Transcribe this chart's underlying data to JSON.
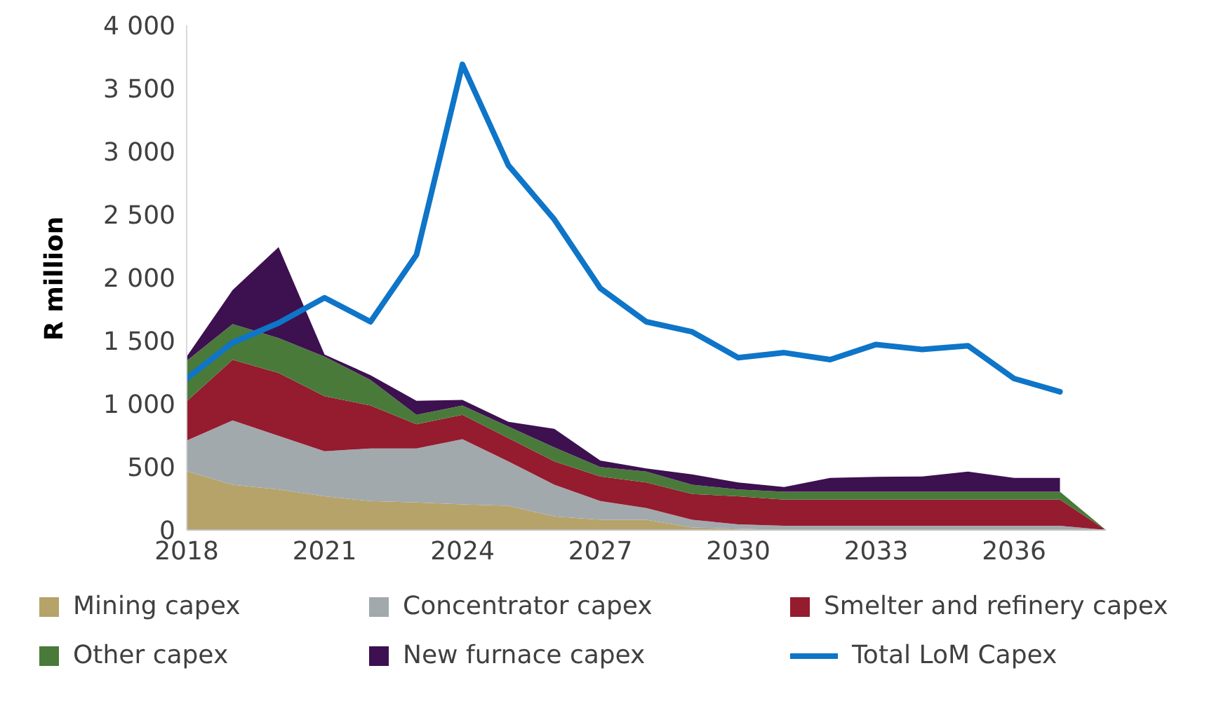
{
  "chart_data": {
    "type": "area",
    "stacked": true,
    "ylabel": "R million",
    "x": [
      2018,
      2019,
      2020,
      2021,
      2022,
      2023,
      2024,
      2025,
      2026,
      2027,
      2028,
      2029,
      2030,
      2031,
      2032,
      2033,
      2034,
      2035,
      2036,
      2037,
      2038
    ],
    "xlim": [
      2018,
      2038
    ],
    "xticks": [
      2018,
      2021,
      2024,
      2027,
      2030,
      2033,
      2036
    ],
    "ylim": [
      0,
      4000
    ],
    "yticks": [
      0,
      500,
      {
        "value": 1000,
        "label": "1 000"
      },
      {
        "value": 1500,
        "label": "1 500"
      },
      {
        "value": 2000,
        "label": "2 000"
      },
      {
        "value": 2500,
        "label": "2 500"
      },
      {
        "value": 3000,
        "label": "3 000"
      },
      {
        "value": 3500,
        "label": "3 500"
      },
      {
        "value": 4000,
        "label": "4 000"
      }
    ],
    "grid": false,
    "legend": "bottom",
    "marker": "none",
    "line_style": "solid",
    "series": [
      {
        "name": "Mining capex",
        "color": "#b5a36a",
        "values": [
          465,
          358,
          321,
          266,
          229,
          218,
          203,
          192,
          107,
          81,
          81,
          19,
          10,
          0,
          0,
          0,
          0,
          0,
          0,
          0,
          0
        ]
      },
      {
        "name": "Concentrator capex",
        "color": "#a2a9ad",
        "values": [
          244,
          510,
          425,
          358,
          417,
          428,
          517,
          351,
          251,
          148,
          92,
          62,
          34,
          33,
          33,
          33,
          33,
          33,
          33,
          33,
          0
        ]
      },
      {
        "name": "Smelter and refinery capex",
        "color": "#951b2f",
        "values": [
          310,
          480,
          498,
          436,
          340,
          192,
          192,
          185,
          185,
          195,
          204,
          204,
          222,
          207,
          207,
          207,
          207,
          207,
          207,
          207,
          0
        ]
      },
      {
        "name": "Other capex",
        "color": "#4a7a3a",
        "values": [
          321,
          284,
          277,
          314,
          203,
          74,
          74,
          92,
          111,
          75,
          85,
          73,
          55,
          63,
          63,
          63,
          63,
          63,
          63,
          63,
          0
        ]
      },
      {
        "name": "New furnace capex",
        "color": "#3d1050",
        "values": [
          34,
          270,
          721,
          16,
          38,
          111,
          44,
          37,
          147,
          51,
          26,
          82,
          56,
          37,
          110,
          118,
          121,
          159,
          110,
          110,
          null
        ]
      },
      {
        "name": "Total LoM Capex",
        "type": "line",
        "color": "#0e75c8",
        "values": [
          1200,
          1485,
          1640,
          1840,
          1650,
          2180,
          3690,
          2890,
          2460,
          1915,
          1650,
          1570,
          1365,
          1405,
          1350,
          1470,
          1430,
          1460,
          1200,
          1095,
          null
        ]
      }
    ]
  }
}
